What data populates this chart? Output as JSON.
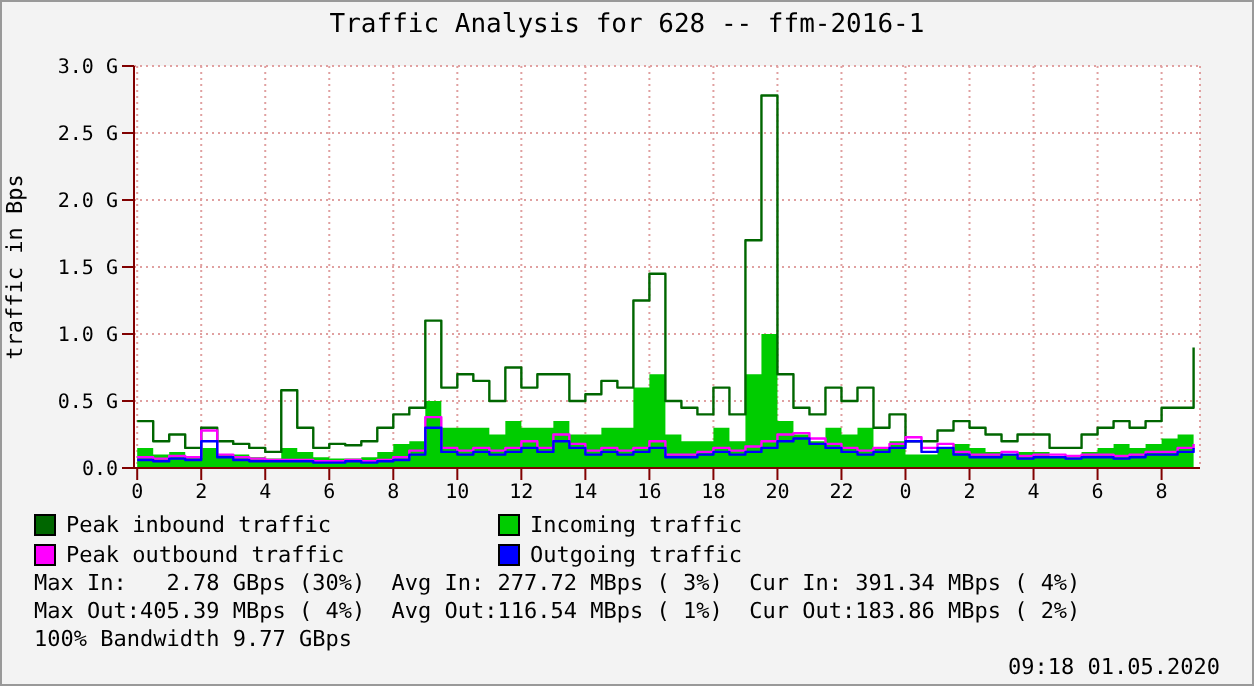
{
  "chart_data": {
    "type": "area",
    "title": "Traffic Analysis for 628 -- ffm-2016-1",
    "ylabel": "traffic in Bps",
    "x": [
      "2020-04-30T00:00",
      "2020-04-30T00:30",
      "2020-04-30T01:00",
      "2020-04-30T01:30",
      "2020-04-30T02:00",
      "2020-04-30T02:30",
      "2020-04-30T03:00",
      "2020-04-30T03:30",
      "2020-04-30T04:00",
      "2020-04-30T04:30",
      "2020-04-30T05:00",
      "2020-04-30T05:30",
      "2020-04-30T06:00",
      "2020-04-30T06:30",
      "2020-04-30T07:00",
      "2020-04-30T07:30",
      "2020-04-30T08:00",
      "2020-04-30T08:30",
      "2020-04-30T09:00",
      "2020-04-30T09:30",
      "2020-04-30T10:00",
      "2020-04-30T10:30",
      "2020-04-30T11:00",
      "2020-04-30T11:30",
      "2020-04-30T12:00",
      "2020-04-30T12:30",
      "2020-04-30T13:00",
      "2020-04-30T13:30",
      "2020-04-30T14:00",
      "2020-04-30T14:30",
      "2020-04-30T15:00",
      "2020-04-30T15:30",
      "2020-04-30T16:00",
      "2020-04-30T16:30",
      "2020-04-30T17:00",
      "2020-04-30T17:30",
      "2020-04-30T18:00",
      "2020-04-30T18:30",
      "2020-04-30T19:00",
      "2020-04-30T19:30",
      "2020-04-30T20:00",
      "2020-04-30T20:30",
      "2020-04-30T21:00",
      "2020-04-30T21:30",
      "2020-04-30T22:00",
      "2020-04-30T22:30",
      "2020-04-30T23:00",
      "2020-04-30T23:30",
      "2020-05-01T00:00",
      "2020-05-01T00:30",
      "2020-05-01T01:00",
      "2020-05-01T01:30",
      "2020-05-01T02:00",
      "2020-05-01T02:30",
      "2020-05-01T03:00",
      "2020-05-01T03:30",
      "2020-05-01T04:00",
      "2020-05-01T04:30",
      "2020-05-01T05:00",
      "2020-05-01T05:30",
      "2020-05-01T06:00",
      "2020-05-01T06:30",
      "2020-05-01T07:00",
      "2020-05-01T07:30",
      "2020-05-01T08:00",
      "2020-05-01T08:30",
      "2020-05-01T09:00"
    ],
    "series": [
      {
        "name": "Peak inbound traffic",
        "type": "step",
        "color": "#006600",
        "values": [
          0.35,
          0.2,
          0.25,
          0.15,
          0.3,
          0.2,
          0.18,
          0.15,
          0.12,
          0.58,
          0.3,
          0.15,
          0.18,
          0.17,
          0.2,
          0.3,
          0.4,
          0.45,
          1.1,
          0.6,
          0.7,
          0.65,
          0.5,
          0.75,
          0.6,
          0.7,
          0.7,
          0.5,
          0.55,
          0.65,
          0.6,
          1.25,
          1.45,
          0.5,
          0.45,
          0.4,
          0.6,
          0.4,
          1.7,
          2.78,
          0.7,
          0.45,
          0.4,
          0.6,
          0.5,
          0.6,
          0.3,
          0.4,
          0.2,
          0.2,
          0.28,
          0.35,
          0.3,
          0.25,
          0.2,
          0.25,
          0.25,
          0.15,
          0.15,
          0.25,
          0.3,
          0.35,
          0.3,
          0.35,
          0.45,
          0.45,
          0.9
        ]
      },
      {
        "name": "Incoming traffic",
        "color": "#00cc00",
        "values": [
          0.15,
          0.1,
          0.12,
          0.08,
          0.15,
          0.1,
          0.1,
          0.08,
          0.07,
          0.15,
          0.12,
          0.08,
          0.07,
          0.07,
          0.08,
          0.12,
          0.18,
          0.2,
          0.5,
          0.3,
          0.3,
          0.3,
          0.25,
          0.35,
          0.3,
          0.3,
          0.35,
          0.25,
          0.25,
          0.3,
          0.3,
          0.6,
          0.7,
          0.25,
          0.2,
          0.2,
          0.3,
          0.2,
          0.7,
          1.0,
          0.35,
          0.25,
          0.2,
          0.3,
          0.25,
          0.3,
          0.15,
          0.2,
          0.1,
          0.1,
          0.15,
          0.18,
          0.15,
          0.12,
          0.1,
          0.12,
          0.12,
          0.08,
          0.08,
          0.12,
          0.15,
          0.18,
          0.15,
          0.18,
          0.22,
          0.25,
          0.4
        ]
      },
      {
        "name": "Peak outbound traffic",
        "type": "step",
        "color": "#ff00ff",
        "values": [
          0.08,
          0.07,
          0.09,
          0.08,
          0.28,
          0.1,
          0.08,
          0.07,
          0.06,
          0.06,
          0.06,
          0.05,
          0.05,
          0.06,
          0.05,
          0.06,
          0.08,
          0.13,
          0.38,
          0.15,
          0.13,
          0.15,
          0.13,
          0.15,
          0.2,
          0.15,
          0.25,
          0.18,
          0.13,
          0.15,
          0.13,
          0.15,
          0.2,
          0.1,
          0.1,
          0.12,
          0.15,
          0.13,
          0.16,
          0.2,
          0.25,
          0.26,
          0.22,
          0.18,
          0.15,
          0.13,
          0.15,
          0.18,
          0.23,
          0.15,
          0.18,
          0.12,
          0.1,
          0.1,
          0.12,
          0.09,
          0.1,
          0.1,
          0.09,
          0.1,
          0.1,
          0.09,
          0.1,
          0.12,
          0.12,
          0.15,
          0.18
        ]
      },
      {
        "name": "Outgoing traffic",
        "type": "step",
        "color": "#0000ff",
        "values": [
          0.06,
          0.05,
          0.07,
          0.06,
          0.2,
          0.08,
          0.06,
          0.05,
          0.05,
          0.05,
          0.05,
          0.04,
          0.04,
          0.05,
          0.04,
          0.05,
          0.06,
          0.1,
          0.3,
          0.12,
          0.1,
          0.12,
          0.1,
          0.12,
          0.15,
          0.12,
          0.2,
          0.15,
          0.1,
          0.12,
          0.1,
          0.12,
          0.15,
          0.08,
          0.08,
          0.1,
          0.12,
          0.1,
          0.12,
          0.15,
          0.2,
          0.22,
          0.18,
          0.15,
          0.12,
          0.1,
          0.12,
          0.15,
          0.2,
          0.12,
          0.15,
          0.1,
          0.08,
          0.08,
          0.1,
          0.07,
          0.08,
          0.08,
          0.07,
          0.08,
          0.08,
          0.07,
          0.08,
          0.1,
          0.1,
          0.12,
          0.15
        ]
      }
    ],
    "xlim": [
      "2020-04-29T23:54",
      "2020-05-01T09:12"
    ],
    "xticks": [
      {
        "value": "2020-04-30T00:00",
        "label": "0"
      },
      {
        "value": "2020-04-30T02:00",
        "label": "2"
      },
      {
        "value": "2020-04-30T04:00",
        "label": "4"
      },
      {
        "value": "2020-04-30T06:00",
        "label": "6"
      },
      {
        "value": "2020-04-30T08:00",
        "label": "8"
      },
      {
        "value": "2020-04-30T10:00",
        "label": "10"
      },
      {
        "value": "2020-04-30T12:00",
        "label": "12"
      },
      {
        "value": "2020-04-30T14:00",
        "label": "14"
      },
      {
        "value": "2020-04-30T16:00",
        "label": "16"
      },
      {
        "value": "2020-04-30T18:00",
        "label": "18"
      },
      {
        "value": "2020-04-30T20:00",
        "label": "20"
      },
      {
        "value": "2020-04-30T22:00",
        "label": "22"
      },
      {
        "value": "2020-05-01T00:00",
        "label": "0"
      },
      {
        "value": "2020-05-01T02:00",
        "label": "2"
      },
      {
        "value": "2020-05-01T04:00",
        "label": "4"
      },
      {
        "value": "2020-05-01T06:00",
        "label": "6"
      },
      {
        "value": "2020-05-01T08:00",
        "label": "8"
      }
    ],
    "ylim": [
      0,
      3
    ],
    "yticks": [
      {
        "value": 0,
        "label": "0.0"
      },
      {
        "value": 0.5,
        "label": "0.5 G"
      },
      {
        "value": 1,
        "label": "1.0 G"
      },
      {
        "value": 1.5,
        "label": "1.5 G"
      },
      {
        "value": 2,
        "label": "2.0 G"
      },
      {
        "value": 2.5,
        "label": "2.5 G"
      },
      {
        "value": 3,
        "label": "3.0 G"
      }
    ],
    "grid": true,
    "legend": "bottom",
    "annotations": [
      "Max In:   2.78 GBps (30%)  Avg In: 277.72 MBps ( 3%)  Cur In: 391.34 MBps ( 4%)",
      "Max Out:405.39 MBps ( 4%)  Avg Out:116.54 MBps ( 1%)  Cur Out:183.86 MBps ( 2%)",
      "100% Bandwidth 9.77 GBps",
      "09:18 01.05.2020"
    ]
  }
}
